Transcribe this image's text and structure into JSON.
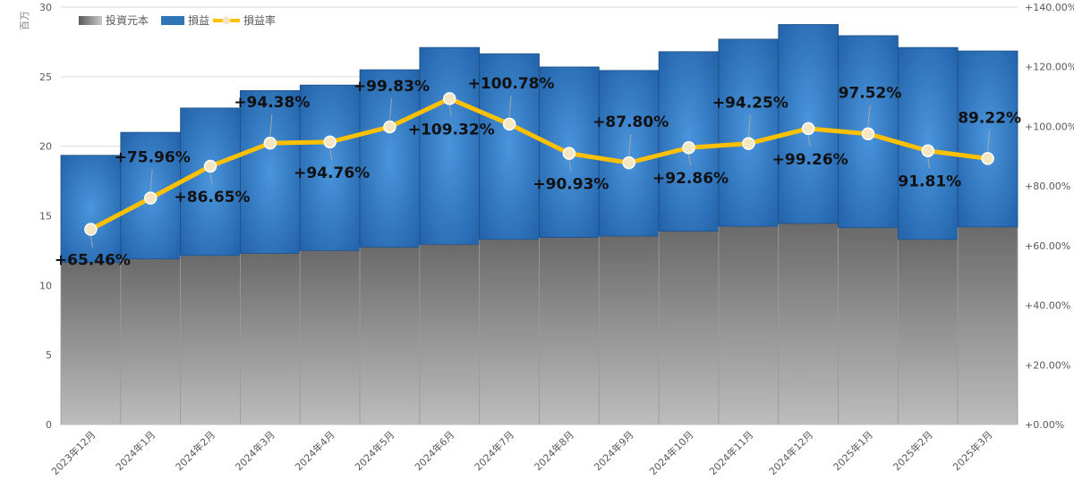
{
  "chart_data": {
    "type": "bar",
    "stacked": true,
    "unit_label": "百万",
    "categories": [
      "2023年12月",
      "2024年1月",
      "2024年2月",
      "2024年3月",
      "2024年4月",
      "2024年5月",
      "2024年6月",
      "2024年7月",
      "2024年8月",
      "2024年9月",
      "2024年10月",
      "2024年11月",
      "2024年12月",
      "2025年1月",
      "2025年2月",
      "2025年3月"
    ],
    "series": [
      {
        "name": "投資元本",
        "kind": "bar",
        "axis": "left",
        "color": "#808080",
        "values": [
          11.65,
          11.9,
          12.15,
          12.3,
          12.5,
          12.75,
          12.95,
          13.3,
          13.45,
          13.55,
          13.9,
          14.25,
          14.45,
          14.15,
          13.3,
          14.2
        ]
      },
      {
        "name": "損益",
        "kind": "bar",
        "axis": "left",
        "color": "#2e75b6",
        "values": [
          7.7,
          9.1,
          10.6,
          11.7,
          11.9,
          12.75,
          14.15,
          13.35,
          12.25,
          11.9,
          12.9,
          13.45,
          14.3,
          13.8,
          13.8,
          12.65
        ]
      },
      {
        "name": "損益率",
        "kind": "line",
        "axis": "right",
        "color": "#ffc000",
        "values": [
          65.46,
          75.96,
          86.65,
          94.38,
          94.76,
          99.83,
          109.32,
          100.78,
          90.93,
          87.8,
          92.86,
          94.25,
          99.26,
          97.52,
          91.81,
          89.22
        ]
      }
    ],
    "rate_labels": [
      "+65.46%",
      "+75.96%",
      "+86.65%",
      "+94.38%",
      "+94.76%",
      "+99.83%",
      "+109.32%",
      "+100.78%",
      "+90.93%",
      "+87.80%",
      "+92.86%",
      "+94.25%",
      "+99.26%",
      "97.52%",
      "91.81%",
      "89.22%"
    ],
    "rate_label_positions": [
      "below",
      "above",
      "below",
      "above",
      "below",
      "above",
      "below",
      "above",
      "below",
      "above",
      "below",
      "above",
      "below",
      "above",
      "below",
      "above"
    ],
    "y_left": {
      "min": 0,
      "max": 30,
      "ticks": [
        0,
        5,
        10,
        15,
        20,
        25,
        30
      ],
      "tick_labels": [
        "0",
        "5",
        "10",
        "15",
        "20",
        "25",
        "30"
      ]
    },
    "y_right": {
      "min": 0,
      "max": 140,
      "ticks": [
        0,
        20,
        40,
        60,
        80,
        100,
        120,
        140
      ],
      "tick_labels": [
        "+0.00%",
        "+20.00%",
        "+40.00%",
        "+60.00%",
        "+80.00%",
        "+100.00%",
        "+120.00%",
        "+140.00%"
      ]
    },
    "legend": {
      "placement": "top-left",
      "entries": [
        "投資元本",
        "損益",
        "損益率"
      ]
    },
    "grid": true
  }
}
